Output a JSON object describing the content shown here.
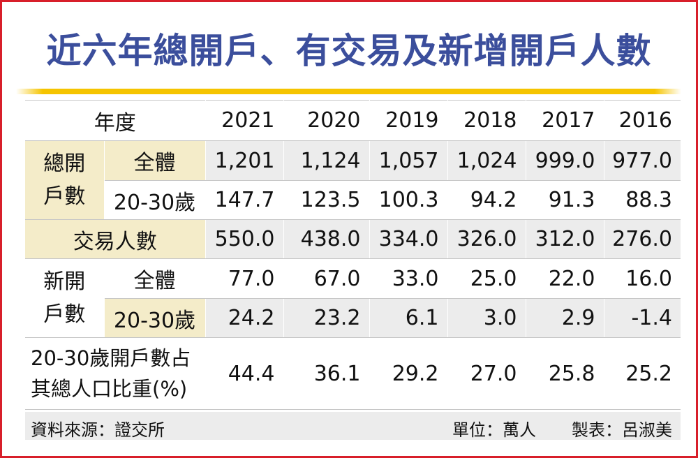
{
  "title": "近六年總開戶、有交易及新增開戶人數",
  "chart_data": {
    "type": "table",
    "columns": [
      "年度",
      "2021",
      "2020",
      "2019",
      "2018",
      "2017",
      "2016"
    ],
    "row_groups": [
      {
        "group": "總開戶數",
        "group_lines": [
          "總開",
          "戶數"
        ],
        "rows": [
          {
            "label": "全體",
            "values": [
              "1,201",
              "1,124",
              "1,057",
              "1,024",
              "999.0",
              "977.0"
            ]
          },
          {
            "label": "20-30歲",
            "values": [
              "147.7",
              "123.5",
              "100.3",
              "94.2",
              "91.3",
              "88.3"
            ]
          }
        ]
      },
      {
        "group": "交易人數",
        "rows": [
          {
            "label": "交易人數",
            "values": [
              "550.0",
              "438.0",
              "334.0",
              "326.0",
              "312.0",
              "276.0"
            ]
          }
        ]
      },
      {
        "group": "新開戶數",
        "group_lines": [
          "新開",
          "戶數"
        ],
        "rows": [
          {
            "label": "全體",
            "values": [
              "77.0",
              "67.0",
              "33.0",
              "25.0",
              "22.0",
              "16.0"
            ]
          },
          {
            "label": "20-30歲",
            "values": [
              "24.2",
              "23.2",
              "6.1",
              "3.0",
              "2.9",
              "-1.4"
            ]
          }
        ]
      },
      {
        "group": "20-30歲開戶數占其總人口比重(%)",
        "group_lines": [
          "20-30歲開戶數占",
          "其總人口比重(%)"
        ],
        "rows": [
          {
            "label": "20-30歲開戶數占其總人口比重(%)",
            "values": [
              "44.4",
              "36.1",
              "29.2",
              "27.0",
              "25.8",
              "25.2"
            ]
          }
        ]
      }
    ]
  },
  "footer": {
    "source": "資料來源：證交所",
    "unit": "單位：萬人",
    "maker": "製表：呂淑美"
  },
  "colors": {
    "title": "#3b4e9c",
    "border": "#d81f2a",
    "rule": "#f5c400",
    "gray_row": "#ececec",
    "yellow_cell": "#f4ecc9"
  }
}
